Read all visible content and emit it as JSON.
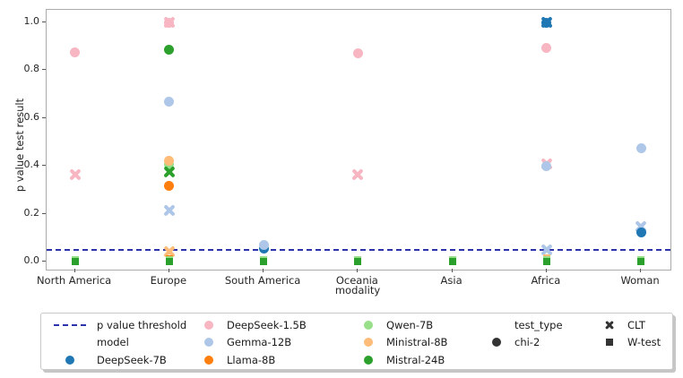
{
  "figure": {
    "background": "#ffffff",
    "spine_color": "#ababab",
    "legend_marker_color": "#333333"
  },
  "legend": {
    "model_header": "model",
    "test_type_header": "test_type"
  },
  "chart_data": {
    "type": "scatter",
    "title": "",
    "xlabel": "modality",
    "ylabel": "p value test result",
    "categories": [
      "North America",
      "Europe",
      "South America",
      "Oceania",
      "Asia",
      "Africa",
      "Woman"
    ],
    "y_ticks": [
      "0.0",
      "0.2",
      "0.4",
      "0.6",
      "0.8",
      "1.0"
    ],
    "ylim": [
      -0.034,
      1.052
    ],
    "grid": false,
    "legend_position": "bottom",
    "threshold": {
      "label": "p value threshold",
      "value": 0.05,
      "color": "#2e32a8"
    },
    "models": [
      {
        "name": "DeepSeek-7B",
        "color": "#1f77b4"
      },
      {
        "name": "DeepSeek-1.5B",
        "color": "#f7b6c2"
      },
      {
        "name": "Gemma-12B",
        "color": "#aec7e8"
      },
      {
        "name": "Llama-8B",
        "color": "#ff7f0e"
      },
      {
        "name": "Qwen-7B",
        "color": "#98df8a"
      },
      {
        "name": "Ministral-8B",
        "color": "#ffbb78"
      },
      {
        "name": "Mistral-24B",
        "color": "#2ca02c"
      }
    ],
    "test_types": [
      {
        "name": "chi-2",
        "marker": "circle"
      },
      {
        "name": "CLT",
        "marker": "x"
      },
      {
        "name": "W-test",
        "marker": "square"
      }
    ],
    "points": [
      {
        "category": "North America",
        "model": "DeepSeek-1.5B",
        "test": "chi-2",
        "y": 0.875
      },
      {
        "category": "North America",
        "model": "DeepSeek-1.5B",
        "test": "CLT",
        "y": 0.365
      },
      {
        "category": "North America",
        "model": "DeepSeek-1.5B",
        "test": "W-test",
        "y": 0.005
      },
      {
        "category": "North America",
        "model": "Qwen-7B",
        "test": "W-test",
        "y": 0.008
      },
      {
        "category": "North America",
        "model": "Mistral-24B",
        "test": "W-test",
        "y": 0.0
      },
      {
        "category": "Europe",
        "model": "DeepSeek-1.5B",
        "test": "chi-2",
        "y": 1.0
      },
      {
        "category": "Europe",
        "model": "DeepSeek-1.5B",
        "test": "CLT",
        "y": 1.0
      },
      {
        "category": "Europe",
        "model": "Mistral-24B",
        "test": "chi-2",
        "y": 0.885
      },
      {
        "category": "Europe",
        "model": "Gemma-12B",
        "test": "chi-2",
        "y": 0.67
      },
      {
        "category": "Europe",
        "model": "Qwen-7B",
        "test": "chi-2",
        "y": 0.405
      },
      {
        "category": "Europe",
        "model": "Ministral-8B",
        "test": "chi-2",
        "y": 0.42
      },
      {
        "category": "Europe",
        "model": "Mistral-24B",
        "test": "CLT",
        "y": 0.375
      },
      {
        "category": "Europe",
        "model": "Llama-8B",
        "test": "chi-2",
        "y": 0.315
      },
      {
        "category": "Europe",
        "model": "Gemma-12B",
        "test": "CLT",
        "y": 0.215
      },
      {
        "category": "Europe",
        "model": "Ministral-8B",
        "test": "CLT",
        "y": 0.04
      },
      {
        "category": "Europe",
        "model": "Llama-8B",
        "test": "W-test",
        "y": 0.012
      },
      {
        "category": "Europe",
        "model": "Qwen-7B",
        "test": "W-test",
        "y": 0.008
      },
      {
        "category": "Europe",
        "model": "Mistral-24B",
        "test": "W-test",
        "y": 0.0
      },
      {
        "category": "South America",
        "model": "DeepSeek-7B",
        "test": "chi-2",
        "y": 0.055
      },
      {
        "category": "South America",
        "model": "Gemma-12B",
        "test": "chi-2",
        "y": 0.07
      },
      {
        "category": "South America",
        "model": "Qwen-7B",
        "test": "W-test",
        "y": 0.008
      },
      {
        "category": "South America",
        "model": "Mistral-24B",
        "test": "W-test",
        "y": 0.0
      },
      {
        "category": "Oceania",
        "model": "DeepSeek-1.5B",
        "test": "chi-2",
        "y": 0.87
      },
      {
        "category": "Oceania",
        "model": "DeepSeek-1.5B",
        "test": "CLT",
        "y": 0.365
      },
      {
        "category": "Oceania",
        "model": "Qwen-7B",
        "test": "W-test",
        "y": 0.008
      },
      {
        "category": "Oceania",
        "model": "Mistral-24B",
        "test": "W-test",
        "y": 0.0
      },
      {
        "category": "Asia",
        "model": "Qwen-7B",
        "test": "W-test",
        "y": 0.008
      },
      {
        "category": "Asia",
        "model": "Mistral-24B",
        "test": "W-test",
        "y": 0.0
      },
      {
        "category": "Africa",
        "model": "DeepSeek-7B",
        "test": "chi-2",
        "y": 1.0
      },
      {
        "category": "Africa",
        "model": "DeepSeek-7B",
        "test": "CLT",
        "y": 1.0
      },
      {
        "category": "Africa",
        "model": "DeepSeek-1.5B",
        "test": "chi-2",
        "y": 0.895
      },
      {
        "category": "Africa",
        "model": "DeepSeek-1.5B",
        "test": "CLT",
        "y": 0.41
      },
      {
        "category": "Africa",
        "model": "Gemma-12B",
        "test": "chi-2",
        "y": 0.4
      },
      {
        "category": "Africa",
        "model": "Gemma-12B",
        "test": "CLT",
        "y": 0.05
      },
      {
        "category": "Africa",
        "model": "Ministral-8B",
        "test": "W-test",
        "y": 0.014
      },
      {
        "category": "Africa",
        "model": "Qwen-7B",
        "test": "W-test",
        "y": 0.008
      },
      {
        "category": "Africa",
        "model": "Mistral-24B",
        "test": "W-test",
        "y": 0.0
      },
      {
        "category": "Woman",
        "model": "Gemma-12B",
        "test": "chi-2",
        "y": 0.475
      },
      {
        "category": "Woman",
        "model": "Gemma-12B",
        "test": "CLT",
        "y": 0.145
      },
      {
        "category": "Woman",
        "model": "DeepSeek-7B",
        "test": "chi-2",
        "y": 0.12
      },
      {
        "category": "Woman",
        "model": "Qwen-7B",
        "test": "W-test",
        "y": 0.008
      },
      {
        "category": "Woman",
        "model": "Mistral-24B",
        "test": "W-test",
        "y": 0.0
      }
    ]
  }
}
